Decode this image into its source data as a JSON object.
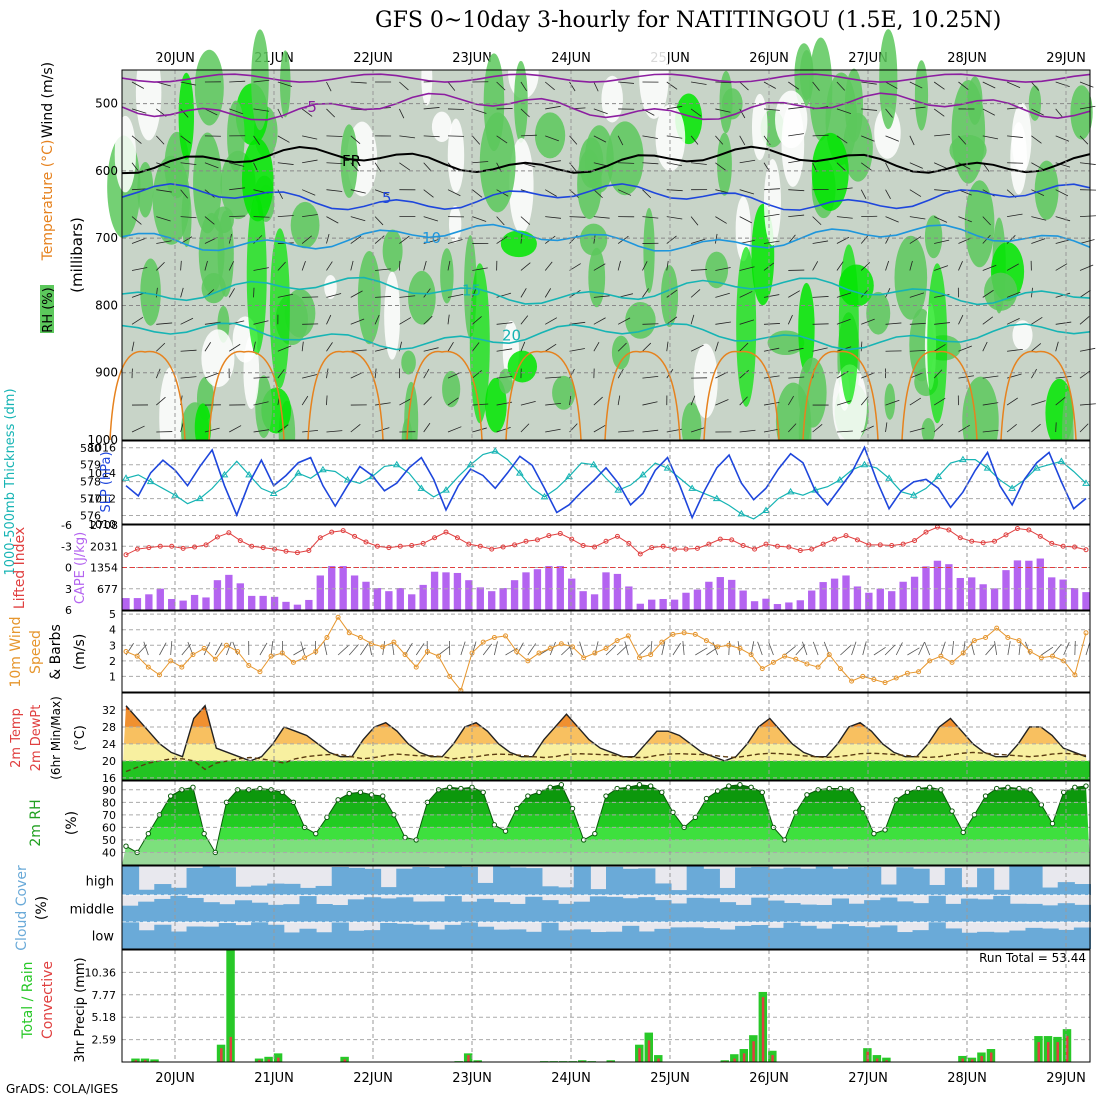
{
  "title": "GFS 0~10day 3-hourly for NATITINGOU (1.5E, 10.25N)",
  "credit": "GrADS: COLA/IGES",
  "colors": {
    "rh_light": "#c8d4c8",
    "rh_mid": "#5cc85c",
    "rh_bright": "#00e600",
    "rh_dark": "#0a7a0a",
    "purple": "#8c1ea0",
    "blue": "#1e46dc",
    "lightblue": "#1e96dc",
    "teal": "#16b4b4",
    "orange": "#e6821e",
    "cape": "#b464f0",
    "lifted": "#e04040",
    "wind10m": "#e6962e",
    "temp_orange": "#e65000",
    "temp_yellow": "#f8e878",
    "dewpoint": "#5a3a10",
    "cloud": "#6aaad8",
    "precip_total": "#28c828",
    "precip_conv": "#e04040"
  },
  "chart_data": [
    {
      "type": "heatmap",
      "name": "upper-air",
      "date_labels": [
        "20JUN",
        "21JUN",
        "22JUN",
        "23JUN",
        "24JUN",
        "25JUN",
        "26JUN",
        "27JUN",
        "28JUN",
        "29JUN"
      ],
      "ylabel_rh": "RH (%)",
      "ylabel_temp": "Temperature (°C)",
      "ylabel_wind": "Wind (m/s)",
      "ylabel_press": "(millibars)",
      "yticks": [
        500,
        600,
        700,
        800,
        900,
        1000
      ],
      "ylim": [
        450,
        1000
      ],
      "isotherms": [
        {
          "label": "-5",
          "level": 505
        },
        {
          "label": "FR",
          "level": 585
        },
        {
          "label": "5",
          "level": 640
        },
        {
          "label": "10",
          "level": 700
        },
        {
          "label": "15",
          "level": 778
        },
        {
          "label": "20",
          "level": 845
        }
      ]
    },
    {
      "type": "line",
      "name": "thickness-slp",
      "ylabel_left": "1000-500mb Thickness (dm)",
      "ylabel_right": "SLP (hPa)",
      "yticks_left": [
        576,
        577,
        578,
        579,
        580
      ],
      "yticks_right": [
        1010,
        1012,
        1014,
        1016
      ],
      "ylim_left": [
        575.5,
        580.4
      ],
      "ylim_right": [
        1010,
        1016.5
      ],
      "thickness": [
        578.2,
        578.4,
        578.0,
        577.6,
        577.2,
        576.7,
        577.0,
        577.6,
        578.4,
        579.2,
        578.4,
        577.6,
        577.3,
        577.7,
        578.5,
        578.2,
        578.7,
        578.6,
        578.1,
        577.9,
        578.3,
        578.9,
        579.0,
        578.5,
        577.6,
        577.1,
        577.5,
        578.3,
        579.0,
        579.6,
        579.8,
        579.3,
        578.5,
        577.6,
        577.1,
        577.6,
        578.3,
        579.1,
        579.0,
        578.2,
        577.5,
        577.8,
        578.4,
        579.1,
        578.8,
        578.2,
        577.6,
        577.3,
        577.0,
        576.6,
        576.1,
        575.8,
        576.3,
        577.0,
        577.4,
        577.2,
        577.5,
        577.7,
        578.1,
        578.7,
        579.0,
        578.8,
        578.2,
        577.4,
        577.2,
        577.6,
        578.3,
        579.1,
        579.3,
        579.3,
        578.8,
        578.1,
        577.6,
        578.1,
        578.8,
        579.0,
        579.2,
        578.6,
        577.9
      ],
      "slp": [
        1013.0,
        1012.2,
        1014.0,
        1015.0,
        1014.2,
        1013.0,
        1014.5,
        1015.8,
        1013.0,
        1010.7,
        1013.2,
        1015.0,
        1013.0,
        1013.8,
        1014.8,
        1015.2,
        1013.0,
        1011.4,
        1013.0,
        1014.5,
        1013.8,
        1012.6,
        1013.2,
        1014.4,
        1015.2,
        1013.5,
        1011.1,
        1013.0,
        1014.3,
        1013.8,
        1012.8,
        1014.0,
        1015.3,
        1014.6,
        1012.8,
        1010.9,
        1011.5,
        1012.5,
        1013.4,
        1014.4,
        1013.2,
        1011.5,
        1012.4,
        1014.2,
        1015.2,
        1013.0,
        1010.5,
        1012.6,
        1014.4,
        1015.4,
        1013.2,
        1011.9,
        1012.8,
        1014.3,
        1015.5,
        1014.8,
        1012.6,
        1011.5,
        1012.8,
        1014.1,
        1016.0,
        1013.4,
        1011.2,
        1012.6,
        1013.3,
        1013.5,
        1012.8,
        1011.3,
        1012.5,
        1014.2,
        1015.6,
        1013.0,
        1011.5,
        1013.5,
        1014.8,
        1015.6,
        1013.3,
        1011.2,
        1012.0
      ]
    },
    {
      "type": "bar",
      "name": "cape-lifted",
      "ylabel_left": "Lifted Index",
      "ylabel_right": "CAPE (J/kg)",
      "yticks_left": [
        "6",
        "3",
        "0",
        "-3",
        "-6"
      ],
      "yticks_right": [
        677,
        1354,
        2031,
        2708
      ],
      "ylim_right": [
        0,
        2708
      ],
      "cape": [
        380,
        380,
        500,
        680,
        350,
        300,
        480,
        400,
        950,
        1120,
        850,
        450,
        450,
        420,
        260,
        170,
        320,
        1100,
        1400,
        1400,
        1100,
        900,
        700,
        600,
        700,
        500,
        800,
        1220,
        1200,
        1180,
        950,
        720,
        600,
        700,
        950,
        1200,
        1300,
        1400,
        1400,
        1000,
        600,
        500,
        1200,
        1150,
        750,
        200,
        330,
        350,
        330,
        550,
        650,
        900,
        1050,
        960,
        620,
        280,
        360,
        190,
        240,
        310,
        620,
        890,
        1000,
        1100,
        750,
        550,
        680,
        600,
        900,
        1060,
        1390,
        1570,
        1460,
        1020,
        1040,
        820,
        690,
        1270,
        1580,
        1570,
        1640,
        1040,
        970,
        700,
        570
      ],
      "lifted_index": [
        -1.8,
        -2.6,
        -2.8,
        -3.0,
        -3.0,
        -2.7,
        -2.9,
        -3.2,
        -4.3,
        -4.9,
        -3.8,
        -3.0,
        -2.8,
        -2.6,
        -2.3,
        -2.1,
        -2.4,
        -4.2,
        -5.0,
        -5.2,
        -4.4,
        -3.6,
        -3.0,
        -2.8,
        -3.0,
        -3.1,
        -3.4,
        -4.2,
        -5.0,
        -4.2,
        -3.3,
        -3.0,
        -2.6,
        -2.9,
        -3.2,
        -3.7,
        -3.9,
        -4.5,
        -4.8,
        -4.0,
        -3.1,
        -2.9,
        -3.7,
        -4.4,
        -3.4,
        -1.9,
        -2.8,
        -3.0,
        -2.6,
        -2.6,
        -2.7,
        -3.3,
        -4.0,
        -3.9,
        -3.1,
        -2.6,
        -3.3,
        -3.0,
        -2.9,
        -2.4,
        -2.6,
        -3.3,
        -4.0,
        -4.5,
        -3.9,
        -3.2,
        -3.2,
        -3.1,
        -3.3,
        -3.8,
        -5.0,
        -5.7,
        -5.3,
        -4.2,
        -3.7,
        -3.5,
        -3.7,
        -4.6,
        -5.5,
        -5.3,
        -4.4,
        -3.4,
        -3.0,
        -2.9,
        -2.5
      ]
    },
    {
      "type": "line",
      "name": "wind10m",
      "ylabel": "10m Wind Speed & Barbs (m/s)",
      "yticks": [
        1,
        2,
        3,
        4,
        5
      ],
      "ylim": [
        0,
        5.2
      ],
      "speed": [
        2.6,
        2.3,
        1.6,
        1.1,
        2.0,
        1.6,
        2.4,
        2.8,
        2.1,
        3.0,
        2.6,
        1.7,
        1.3,
        2.3,
        2.5,
        1.9,
        2.2,
        2.6,
        3.5,
        4.8,
        3.8,
        3.5,
        3.1,
        2.9,
        3.2,
        2.4,
        1.6,
        2.6,
        2.3,
        1.0,
        0.1,
        2.5,
        3.2,
        3.5,
        3.6,
        2.6,
        2.0,
        2.5,
        2.8,
        3.1,
        2.9,
        2.2,
        2.5,
        2.8,
        3.3,
        3.6,
        2.2,
        2.4,
        3.2,
        3.7,
        3.8,
        3.7,
        3.3,
        2.9,
        3.0,
        2.8,
        2.4,
        1.5,
        1.9,
        2.3,
        2.1,
        1.8,
        1.6,
        2.4,
        1.5,
        0.7,
        1.0,
        0.8,
        0.6,
        0.9,
        1.2,
        1.3,
        2.0,
        2.3,
        1.9,
        2.5,
        3.3,
        3.5,
        4.1,
        3.5,
        3.3,
        2.6,
        2.2,
        2.3,
        2.0,
        1.1,
        3.8
      ]
    },
    {
      "type": "area",
      "name": "temp-dewpoint",
      "ylabel": "2m Temp 2m DewPt (6hr Min/Max) (°C)",
      "yticks": [
        16,
        20,
        24,
        28,
        32
      ],
      "ylim": [
        15.5,
        36
      ],
      "temp": [
        33,
        30,
        27,
        24,
        22,
        21,
        30,
        33,
        23,
        22,
        21,
        20,
        21,
        24,
        28,
        27,
        26,
        24,
        22,
        21,
        21,
        25,
        28,
        29,
        27,
        24,
        22,
        21,
        21,
        24,
        28,
        29,
        27,
        24,
        22,
        21,
        21,
        25,
        28,
        31,
        28,
        25,
        23,
        22,
        21,
        21,
        24,
        27,
        27,
        26,
        24,
        22,
        21,
        20,
        21,
        24,
        28,
        30,
        27,
        24,
        22,
        21,
        21,
        24,
        28,
        29,
        27,
        24,
        22,
        21,
        21,
        24,
        28,
        30,
        27,
        24,
        22,
        21,
        21,
        24,
        28,
        28,
        26,
        23,
        22,
        21
      ],
      "dewpoint": [
        17.5,
        18.5,
        19.5,
        20.0,
        20.5,
        20.5,
        20.0,
        18.0,
        19.5,
        20.0,
        20.5,
        20.8,
        20.5,
        20.0,
        19.5,
        20.5,
        21.0,
        21.3,
        21.5,
        21.5,
        21.0,
        20.5,
        20.8,
        21.3,
        21.6,
        21.4,
        21.2,
        21.2,
        21.0,
        20.5,
        20.8,
        21.0,
        21.4,
        21.6,
        21.5,
        21.3,
        21.0,
        20.8,
        21.0,
        21.5,
        21.7,
        21.6,
        21.5,
        21.4,
        21.0,
        20.8,
        20.8,
        21.3,
        21.6,
        21.7,
        21.6,
        21.5,
        21.3,
        21.0,
        20.8,
        21.2,
        21.6,
        21.8,
        21.7,
        21.5,
        21.2,
        21.0,
        20.8,
        21.0,
        21.3,
        21.7,
        21.8,
        21.7,
        21.5,
        21.3,
        21.0,
        20.8,
        21.0,
        21.4,
        21.8,
        22.0,
        21.8,
        21.6,
        21.4,
        21.2,
        21.0,
        21.2,
        21.6,
        21.8,
        21.6,
        21.3
      ]
    },
    {
      "type": "area",
      "name": "rh2m",
      "ylabel": "2m RH (%)",
      "yticks": [
        40,
        50,
        60,
        70,
        80,
        90
      ],
      "ylim": [
        30,
        97
      ],
      "rh": [
        45,
        40,
        55,
        70,
        85,
        90,
        92,
        55,
        40,
        80,
        90,
        90,
        91,
        90,
        88,
        80,
        60,
        55,
        68,
        82,
        87,
        88,
        86,
        85,
        70,
        52,
        50,
        80,
        90,
        92,
        91,
        92,
        88,
        62,
        57,
        75,
        85,
        88,
        92,
        94,
        75,
        50,
        55,
        85,
        91,
        92,
        94,
        93,
        88,
        72,
        60,
        68,
        83,
        89,
        93,
        94,
        92,
        88,
        60,
        50,
        72,
        86,
        90,
        91,
        91,
        90,
        75,
        55,
        58,
        82,
        88,
        91,
        92,
        90,
        73,
        56,
        70,
        85,
        91,
        92,
        91,
        90,
        78,
        63,
        88,
        92,
        93
      ]
    },
    {
      "type": "heatmap",
      "name": "cloud-cover",
      "ylabel": "Cloud Cover (%)",
      "rows": [
        "high",
        "middle",
        "low"
      ]
    },
    {
      "type": "bar",
      "name": "precip",
      "ylabel_left": "Total / Rain Convective",
      "ylabel_right": "3hr Precip (mm)",
      "run_total_label": "Run Total = 53.44",
      "yticks": [
        2.59,
        5.18,
        7.77,
        10.36
      ],
      "ylim": [
        0,
        12.95
      ],
      "total": [
        0,
        0.4,
        0.4,
        0.3,
        0,
        0,
        0,
        0,
        0,
        0,
        2.0,
        12.9,
        0,
        0,
        0.4,
        0.6,
        1.0,
        0,
        0,
        0,
        0,
        0,
        0,
        0.6,
        0,
        0,
        0,
        0,
        0,
        0,
        0,
        0,
        0,
        0,
        0,
        0.1,
        1.0,
        0.2,
        0,
        0,
        0,
        0,
        0,
        0,
        0.1,
        0.1,
        0.1,
        0.1,
        0.2,
        0.1,
        0,
        0.2,
        0,
        0,
        2.0,
        3.4,
        0.8,
        0,
        0,
        0,
        0,
        0,
        0,
        0.2,
        0.9,
        1.5,
        3.1,
        8.1,
        1.3,
        0,
        0,
        0,
        0,
        0,
        0,
        0,
        0,
        0,
        1.6,
        0.8,
        0.5,
        0,
        0,
        0,
        0,
        0,
        0,
        0,
        0.7,
        0.5,
        1.1,
        1.5,
        0,
        0,
        0,
        0,
        3.0,
        3.0,
        2.9,
        3.8,
        0,
        0
      ],
      "convective": [
        0,
        0.2,
        0.2,
        0.1,
        0,
        0,
        0,
        0,
        0,
        0,
        1.6,
        2.9,
        0,
        0,
        0.2,
        0.3,
        0.5,
        0,
        0,
        0,
        0,
        0,
        0,
        0.3,
        0,
        0,
        0,
        0,
        0,
        0,
        0,
        0,
        0,
        0,
        0,
        0,
        0.8,
        0.1,
        0,
        0,
        0,
        0,
        0,
        0,
        0,
        0,
        0,
        0,
        0.1,
        0,
        0,
        0.1,
        0,
        0,
        1.6,
        2.5,
        0.4,
        0,
        0,
        0,
        0,
        0,
        0,
        0.1,
        0.4,
        1.0,
        2.4,
        7.5,
        0.8,
        0,
        0,
        0,
        0,
        0,
        0,
        0,
        0,
        0,
        1.2,
        0.4,
        0.2,
        0,
        0,
        0,
        0,
        0,
        0,
        0,
        0.4,
        0.3,
        0.7,
        1.1,
        0,
        0,
        0,
        0,
        2.3,
        2.3,
        2.3,
        3.0,
        0,
        0
      ]
    }
  ]
}
